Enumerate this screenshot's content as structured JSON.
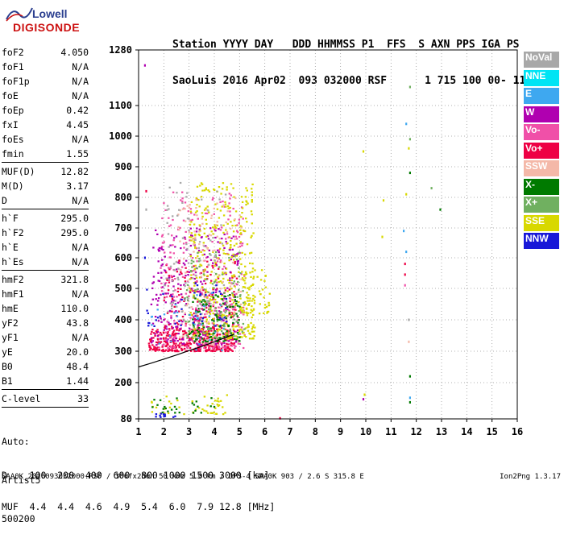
{
  "logo": {
    "line1": "Lowell",
    "line2": "DIGISONDE"
  },
  "header": {
    "labels": "Station YYYY DAY   DDD HHMMSS P1  FFS  S AXN PPS IGA PS",
    "values": "SaoLuis 2016 Apr02  093 032000 RSF      1 715 100 00- 11"
  },
  "params": {
    "group1": [
      {
        "name": "foF2",
        "value": "4.050"
      },
      {
        "name": "foF1",
        "value": "N/A"
      },
      {
        "name": "foF1p",
        "value": "N/A"
      },
      {
        "name": "foE",
        "value": "N/A"
      },
      {
        "name": "foEp",
        "value": "0.42"
      },
      {
        "name": "fxI",
        "value": "4.45"
      },
      {
        "name": "foEs",
        "value": "N/A"
      },
      {
        "name": "fmin",
        "value": "1.55"
      }
    ],
    "group2": [
      {
        "name": "MUF(D)",
        "value": "12.82"
      },
      {
        "name": "M(D)",
        "value": "3.17"
      },
      {
        "name": "D",
        "value": "N/A"
      }
    ],
    "group3": [
      {
        "name": "h`F",
        "value": "295.0"
      },
      {
        "name": "h`F2",
        "value": "295.0"
      },
      {
        "name": "h`E",
        "value": "N/A"
      },
      {
        "name": "h`Es",
        "value": "N/A"
      }
    ],
    "group4": [
      {
        "name": "hmF2",
        "value": "321.8"
      },
      {
        "name": "hmF1",
        "value": "N/A"
      },
      {
        "name": "hmE",
        "value": "110.0"
      },
      {
        "name": "yF2",
        "value": "43.8"
      },
      {
        "name": "yF1",
        "value": "N/A"
      },
      {
        "name": "yE",
        "value": "20.0"
      },
      {
        "name": "B0",
        "value": "48.4"
      },
      {
        "name": "B1",
        "value": "1.44"
      }
    ],
    "group5": [
      {
        "name": "C-level",
        "value": "33"
      }
    ],
    "info": [
      "Auto:",
      "Artist5",
      "500200"
    ]
  },
  "legend": [
    {
      "label": "NoVal",
      "color": "#a8a8a8"
    },
    {
      "label": "NNE",
      "color": "#00e4f4"
    },
    {
      "label": "E",
      "color": "#3ea8f0"
    },
    {
      "label": "W",
      "color": "#b000b0"
    },
    {
      "label": "Vo-",
      "color": "#f050a8"
    },
    {
      "label": "Vo+",
      "color": "#ee0044"
    },
    {
      "label": "SSW",
      "color": "#f4b8a8"
    },
    {
      "label": "X-",
      "color": "#007a00"
    },
    {
      "label": "X+",
      "color": "#70b060"
    },
    {
      "label": "SSE",
      "color": "#d8d800"
    },
    {
      "label": "NNW",
      "color": "#1818d8"
    }
  ],
  "chart_data": {
    "type": "scatter",
    "xlim": [
      1,
      16
    ],
    "ylim": [
      80,
      1280
    ],
    "x_ticks": [
      1,
      2,
      3,
      4,
      5,
      6,
      7,
      8,
      9,
      10,
      11,
      12,
      13,
      14,
      15,
      16
    ],
    "y_ticks": [
      80,
      200,
      300,
      400,
      500,
      600,
      700,
      800,
      900,
      1000,
      1100,
      1280
    ],
    "grid": "dotted",
    "legend_position": "right",
    "point_clusters": [
      {
        "name": "Vo+",
        "color": "#ee0044",
        "x_range": [
          1.4,
          4.8
        ],
        "y_range": [
          300,
          370
        ],
        "count": 380
      },
      {
        "name": "Vo+",
        "color": "#ee0044",
        "x_range": [
          2.0,
          4.9
        ],
        "y_range": [
          370,
          600
        ],
        "count": 160
      },
      {
        "name": "Vo-",
        "color": "#f050a8",
        "x_range": [
          1.8,
          5.2
        ],
        "y_range": [
          310,
          820
        ],
        "count": 300
      },
      {
        "name": "W",
        "color": "#b000b0",
        "x_range": [
          1.5,
          5.0
        ],
        "y_range": [
          320,
          700
        ],
        "count": 260
      },
      {
        "name": "SSE",
        "color": "#d8d800",
        "x_range": [
          3.0,
          5.6
        ],
        "y_range": [
          340,
          850
        ],
        "count": 380
      },
      {
        "name": "SSW",
        "color": "#f4b8a8",
        "x_range": [
          2.5,
          5.2
        ],
        "y_range": [
          320,
          800
        ],
        "count": 140
      },
      {
        "name": "X-",
        "color": "#007a00",
        "x_range": [
          3.0,
          5.0
        ],
        "y_range": [
          330,
          480
        ],
        "count": 120
      },
      {
        "name": "X+",
        "color": "#70b060",
        "x_range": [
          2.8,
          5.2
        ],
        "y_range": [
          340,
          620
        ],
        "count": 110
      },
      {
        "name": "NoVal",
        "color": "#a8a8a8",
        "x_range": [
          2.0,
          4.5
        ],
        "y_range": [
          400,
          850
        ],
        "count": 90
      },
      {
        "name": "NNW",
        "color": "#1818d8",
        "x_range": [
          1.3,
          4.5
        ],
        "y_range": [
          380,
          520
        ],
        "count": 40
      },
      {
        "name": "E",
        "color": "#3ea8f0",
        "x_range": [
          1.5,
          4.5
        ],
        "y_range": [
          300,
          500
        ],
        "count": 30
      },
      {
        "name": "SSE",
        "color": "#d8d800",
        "x_range": [
          5.0,
          6.2
        ],
        "y_range": [
          420,
          560
        ],
        "count": 60
      },
      {
        "name": "SSE",
        "color": "#d8d800",
        "x_range": [
          1.5,
          4.5
        ],
        "y_range": [
          95,
          165
        ],
        "count": 45
      },
      {
        "name": "X-",
        "color": "#007a00",
        "x_range": [
          1.5,
          4.0
        ],
        "y_range": [
          100,
          150
        ],
        "count": 25
      },
      {
        "name": "NNW",
        "color": "#1818d8",
        "x_range": [
          1.5,
          2.5
        ],
        "y_range": [
          85,
          105
        ],
        "count": 12
      }
    ],
    "points": [
      {
        "x": 11.75,
        "y": 1160,
        "color": "#70b060"
      },
      {
        "x": 11.6,
        "y": 1040,
        "color": "#3ea8f0"
      },
      {
        "x": 11.75,
        "y": 990,
        "color": "#70b060"
      },
      {
        "x": 11.7,
        "y": 960,
        "color": "#d8d800"
      },
      {
        "x": 11.75,
        "y": 880,
        "color": "#007a00"
      },
      {
        "x": 11.6,
        "y": 810,
        "color": "#d8d800"
      },
      {
        "x": 11.5,
        "y": 690,
        "color": "#3ea8f0"
      },
      {
        "x": 11.6,
        "y": 620,
        "color": "#3ea8f0"
      },
      {
        "x": 11.55,
        "y": 580,
        "color": "#ee0044"
      },
      {
        "x": 11.55,
        "y": 545,
        "color": "#ee0044"
      },
      {
        "x": 11.55,
        "y": 510,
        "color": "#f050a8"
      },
      {
        "x": 11.7,
        "y": 400,
        "color": "#a8a8a8"
      },
      {
        "x": 11.7,
        "y": 330,
        "color": "#f4b8a8"
      },
      {
        "x": 11.75,
        "y": 220,
        "color": "#007a00"
      },
      {
        "x": 11.75,
        "y": 135,
        "color": "#007a00"
      },
      {
        "x": 11.75,
        "y": 150,
        "color": "#3ea8f0"
      },
      {
        "x": 12.6,
        "y": 830,
        "color": "#70b060"
      },
      {
        "x": 12.95,
        "y": 760,
        "color": "#007a00"
      },
      {
        "x": 10.7,
        "y": 790,
        "color": "#d8d800"
      },
      {
        "x": 10.65,
        "y": 670,
        "color": "#d8d800"
      },
      {
        "x": 9.9,
        "y": 950,
        "color": "#d8d800"
      },
      {
        "x": 9.95,
        "y": 160,
        "color": "#d8d800"
      },
      {
        "x": 9.9,
        "y": 145,
        "color": "#b000b0"
      },
      {
        "x": 6.6,
        "y": 82,
        "color": "#ee0044"
      },
      {
        "x": 1.25,
        "y": 1230,
        "color": "#b000b0"
      },
      {
        "x": 1.3,
        "y": 820,
        "color": "#ee0044"
      },
      {
        "x": 1.3,
        "y": 760,
        "color": "#a8a8a8"
      },
      {
        "x": 1.25,
        "y": 600,
        "color": "#1818d8"
      }
    ],
    "curve": [
      [
        1,
        250
      ],
      [
        1.5,
        262
      ],
      [
        2,
        275
      ],
      [
        2.5,
        288
      ],
      [
        3,
        302
      ],
      [
        3.5,
        315
      ],
      [
        4,
        330
      ],
      [
        4.5,
        345
      ],
      [
        4.8,
        355
      ]
    ],
    "curve_color": "#000000"
  },
  "bottom": {
    "d_row": "D    100  200  400  600  800 1000 1500 3000 [km]",
    "muf_row": "MUF  4.4  4.4  4.6  4.9  5.4  6.0  7.9 12.8 [MHz]"
  },
  "footer": {
    "text": "SAA0K_2016093032000.RSF / 300fx256h 50 kHz 5.0 km / DPS-4 SAA0K 903 / 2.6 S 315.8 E",
    "version": "Ion2Png 1.3.17"
  }
}
